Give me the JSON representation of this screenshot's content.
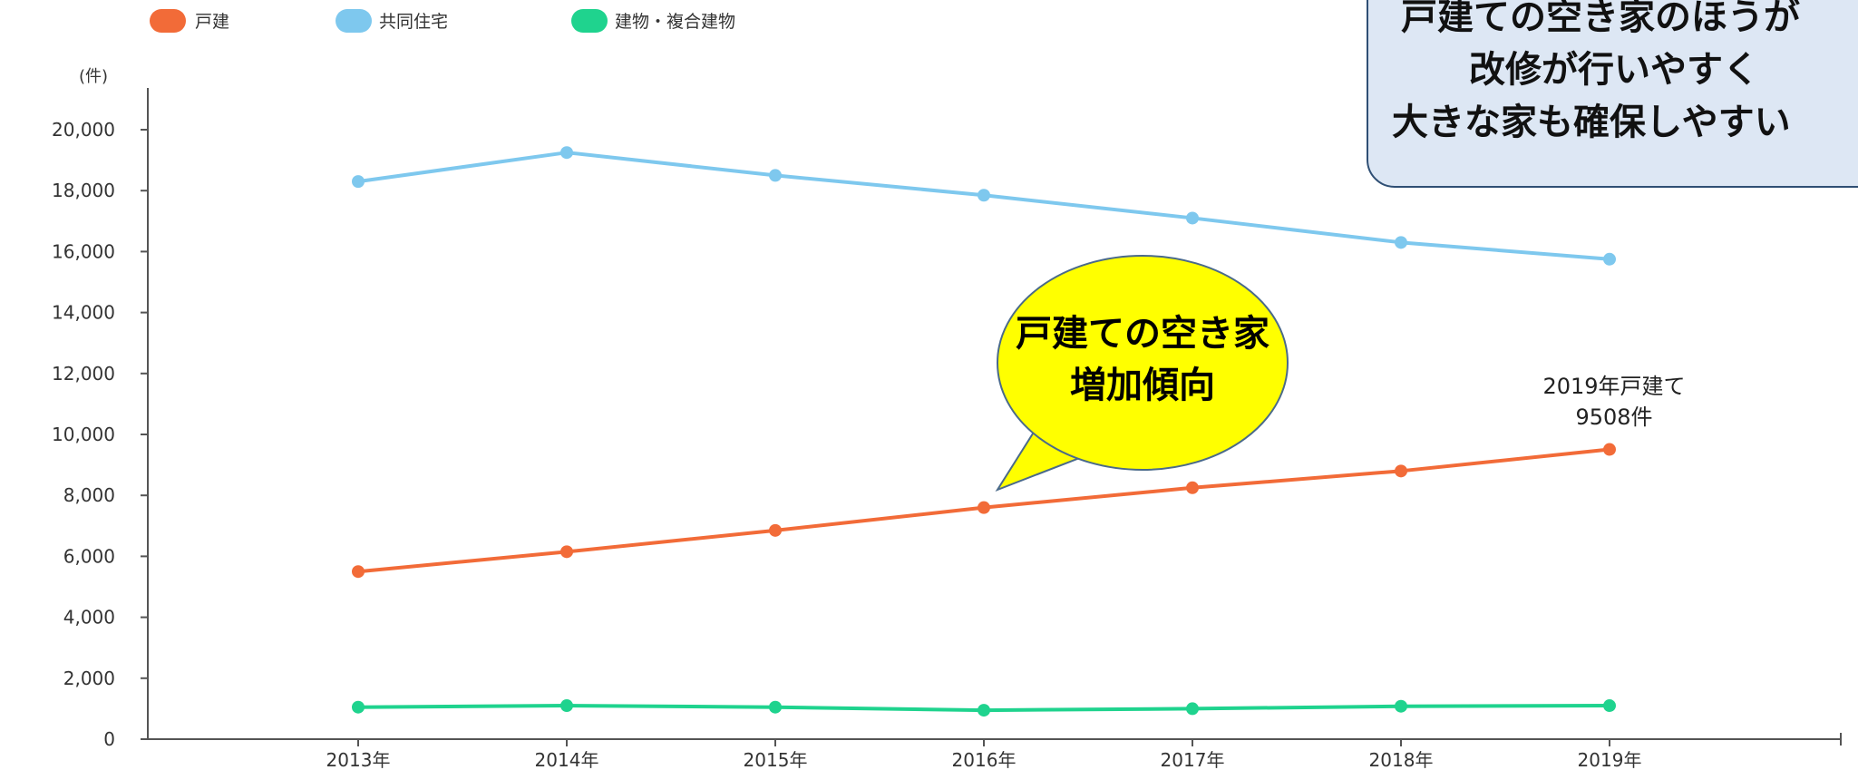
{
  "chart_data": {
    "type": "line",
    "categories": [
      "2013年",
      "2014年",
      "2015年",
      "2016年",
      "2017年",
      "2018年",
      "2019年"
    ],
    "series": [
      {
        "name": "戸建",
        "color": "#f26b38",
        "values": [
          5500,
          6150,
          6850,
          7600,
          8250,
          8800,
          9508
        ]
      },
      {
        "name": "共同住宅",
        "color": "#7ec8ee",
        "values": [
          18300,
          19250,
          18500,
          17850,
          17100,
          16300,
          15750
        ]
      },
      {
        "name": "建物・複合建物",
        "color": "#1fd38e",
        "values": [
          1050,
          1100,
          1050,
          950,
          1000,
          1080,
          1100
        ]
      }
    ],
    "unit_label": "(件)",
    "ylim": [
      0,
      20000
    ],
    "yticks": [
      0,
      2000,
      4000,
      6000,
      8000,
      10000,
      12000,
      14000,
      16000,
      18000,
      20000
    ],
    "ytick_labels": [
      "0",
      "2,000",
      "4,000",
      "6,000",
      "8,000",
      "10,000",
      "12,000",
      "14,000",
      "16,000",
      "18,000",
      "20,000"
    ],
    "grid": false,
    "legend_position": "top-left",
    "annotations": {
      "point_label_line1": "2019年戸建て",
      "point_label_line2": "9508件",
      "bubble_line1": "戸建ての空き家",
      "bubble_line2": "増加傾向",
      "bubble_color": "#ffff00",
      "box_line1": "戸建ての空き家のほうが",
      "box_line2": "改修が行いやすく",
      "box_line3": "大きな家も確保しやすい",
      "box_color": "#dde7f4"
    }
  }
}
